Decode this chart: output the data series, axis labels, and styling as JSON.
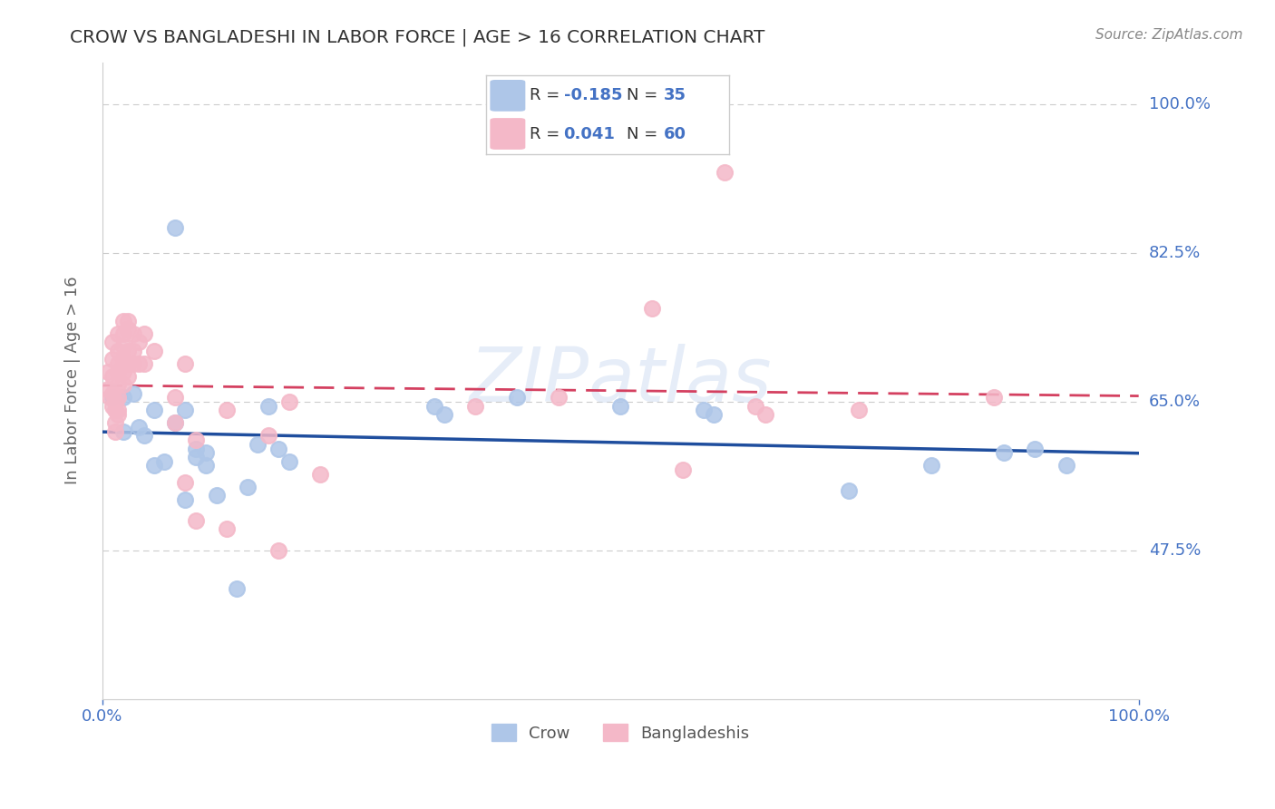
{
  "title": "CROW VS BANGLADESHI IN LABOR FORCE | AGE > 16 CORRELATION CHART",
  "source": "Source: ZipAtlas.com",
  "ylabel": "In Labor Force | Age > 16",
  "xlim": [
    0.0,
    1.0
  ],
  "ylim": [
    0.3,
    1.05
  ],
  "xtick_labels": [
    "0.0%",
    "100.0%"
  ],
  "ytick_labels": [
    "47.5%",
    "65.0%",
    "82.5%",
    "100.0%"
  ],
  "ytick_values": [
    0.475,
    0.65,
    0.825,
    1.0
  ],
  "background_color": "#ffffff",
  "watermark": "ZIPatlas",
  "crow_scatter_color": "#aec6e8",
  "bangladeshi_scatter_color": "#f4b8c8",
  "crow_line_color": "#1f4e9e",
  "bangladeshi_line_color": "#d44060",
  "axis_label_color": "#4472c4",
  "text_color": "#333333",
  "grid_color": "#cccccc",
  "crow_R": "-0.185",
  "crow_N": "35",
  "bangladeshi_R": "0.041",
  "bangladeshi_N": "60",
  "legend_r_n_color": "#4472c4",
  "crow_scatter": [
    [
      0.01,
      0.655
    ],
    [
      0.02,
      0.655
    ],
    [
      0.02,
      0.615
    ],
    [
      0.03,
      0.66
    ],
    [
      0.035,
      0.62
    ],
    [
      0.04,
      0.61
    ],
    [
      0.05,
      0.64
    ],
    [
      0.05,
      0.575
    ],
    [
      0.06,
      0.58
    ],
    [
      0.07,
      0.855
    ],
    [
      0.07,
      0.625
    ],
    [
      0.08,
      0.64
    ],
    [
      0.08,
      0.535
    ],
    [
      0.09,
      0.595
    ],
    [
      0.09,
      0.585
    ],
    [
      0.1,
      0.59
    ],
    [
      0.1,
      0.575
    ],
    [
      0.11,
      0.54
    ],
    [
      0.13,
      0.43
    ],
    [
      0.14,
      0.55
    ],
    [
      0.15,
      0.6
    ],
    [
      0.16,
      0.645
    ],
    [
      0.17,
      0.595
    ],
    [
      0.18,
      0.58
    ],
    [
      0.32,
      0.645
    ],
    [
      0.33,
      0.635
    ],
    [
      0.4,
      0.655
    ],
    [
      0.5,
      0.645
    ],
    [
      0.58,
      0.64
    ],
    [
      0.59,
      0.635
    ],
    [
      0.72,
      0.545
    ],
    [
      0.8,
      0.575
    ],
    [
      0.87,
      0.59
    ],
    [
      0.9,
      0.595
    ],
    [
      0.93,
      0.575
    ]
  ],
  "bangladeshi_scatter": [
    [
      0.005,
      0.685
    ],
    [
      0.005,
      0.665
    ],
    [
      0.007,
      0.655
    ],
    [
      0.01,
      0.645
    ],
    [
      0.01,
      0.72
    ],
    [
      0.01,
      0.7
    ],
    [
      0.01,
      0.68
    ],
    [
      0.01,
      0.66
    ],
    [
      0.012,
      0.65
    ],
    [
      0.012,
      0.64
    ],
    [
      0.012,
      0.625
    ],
    [
      0.012,
      0.615
    ],
    [
      0.015,
      0.73
    ],
    [
      0.015,
      0.71
    ],
    [
      0.015,
      0.695
    ],
    [
      0.015,
      0.685
    ],
    [
      0.015,
      0.67
    ],
    [
      0.015,
      0.655
    ],
    [
      0.015,
      0.64
    ],
    [
      0.015,
      0.635
    ],
    [
      0.02,
      0.745
    ],
    [
      0.02,
      0.73
    ],
    [
      0.02,
      0.715
    ],
    [
      0.02,
      0.7
    ],
    [
      0.02,
      0.685
    ],
    [
      0.02,
      0.67
    ],
    [
      0.025,
      0.745
    ],
    [
      0.025,
      0.735
    ],
    [
      0.025,
      0.71
    ],
    [
      0.025,
      0.695
    ],
    [
      0.025,
      0.68
    ],
    [
      0.03,
      0.73
    ],
    [
      0.03,
      0.71
    ],
    [
      0.03,
      0.695
    ],
    [
      0.035,
      0.72
    ],
    [
      0.035,
      0.695
    ],
    [
      0.04,
      0.73
    ],
    [
      0.04,
      0.695
    ],
    [
      0.05,
      0.71
    ],
    [
      0.07,
      0.655
    ],
    [
      0.07,
      0.625
    ],
    [
      0.08,
      0.695
    ],
    [
      0.08,
      0.555
    ],
    [
      0.09,
      0.605
    ],
    [
      0.09,
      0.51
    ],
    [
      0.12,
      0.64
    ],
    [
      0.12,
      0.5
    ],
    [
      0.16,
      0.61
    ],
    [
      0.17,
      0.475
    ],
    [
      0.18,
      0.65
    ],
    [
      0.21,
      0.565
    ],
    [
      0.36,
      0.645
    ],
    [
      0.44,
      0.655
    ],
    [
      0.53,
      0.76
    ],
    [
      0.56,
      0.57
    ],
    [
      0.6,
      0.92
    ],
    [
      0.63,
      0.645
    ],
    [
      0.64,
      0.635
    ],
    [
      0.73,
      0.64
    ],
    [
      0.86,
      0.655
    ]
  ]
}
